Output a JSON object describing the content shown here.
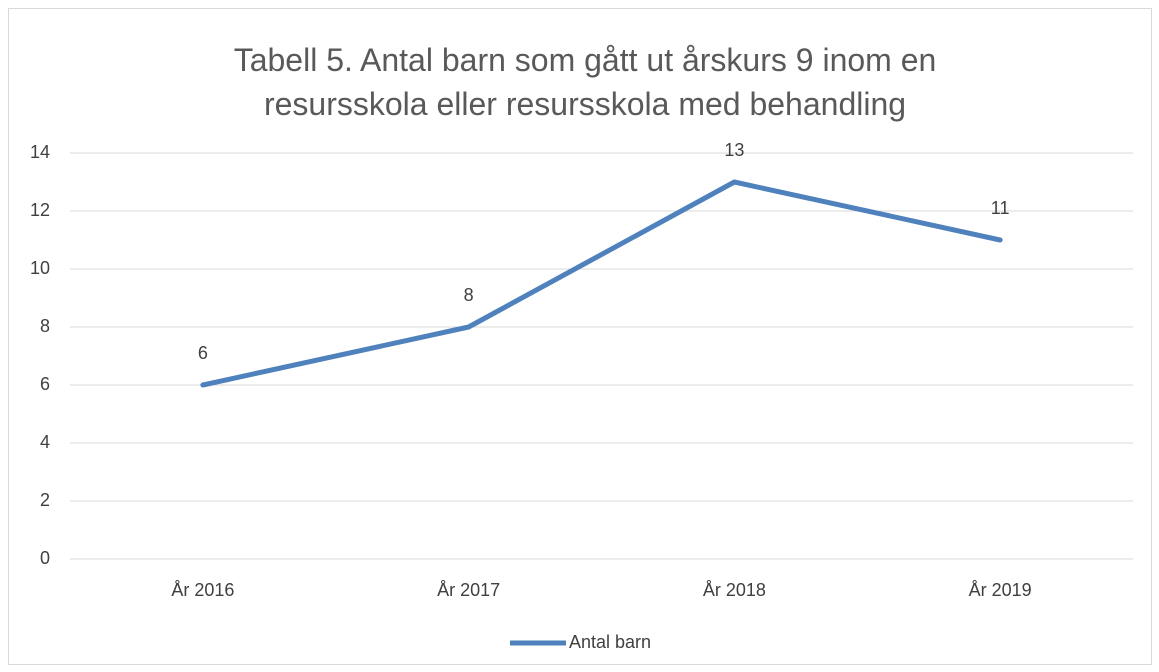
{
  "chart_data": {
    "type": "line",
    "title": "Tabell 5. Antal barn som gått ut årskurs 9 inom en resursskola eller resursskola med behandling",
    "categories": [
      "År 2016",
      "År 2017",
      "År 2018",
      "År 2019"
    ],
    "series": [
      {
        "name": "Antal barn",
        "color": "#4f81bd",
        "values": [
          6,
          8,
          13,
          11
        ]
      }
    ],
    "ylim": [
      0,
      14
    ],
    "yticks": [
      0,
      2,
      4,
      6,
      8,
      10,
      12,
      14
    ],
    "grid": true,
    "legend": "bottom"
  }
}
